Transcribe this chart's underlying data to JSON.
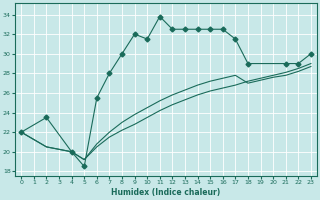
{
  "xlabel": "Humidex (Indice chaleur)",
  "ylabel": "",
  "background_color": "#c8e8e8",
  "grid_color": "#ffffff",
  "line_color": "#1a6b5a",
  "xlim": [
    -0.5,
    23.5
  ],
  "ylim": [
    17.5,
    35.2
  ],
  "xticks": [
    0,
    1,
    2,
    3,
    4,
    5,
    6,
    7,
    8,
    9,
    10,
    11,
    12,
    13,
    14,
    15,
    16,
    17,
    18,
    19,
    20,
    21,
    22,
    23
  ],
  "yticks": [
    18,
    20,
    22,
    24,
    26,
    28,
    30,
    32,
    34
  ],
  "line1_x": [
    0,
    2,
    4,
    5,
    6,
    7,
    8,
    9,
    10,
    11,
    12,
    13,
    14,
    15,
    16,
    17,
    18,
    21,
    22,
    23
  ],
  "line1_y": [
    22,
    23.5,
    20,
    18.5,
    25.5,
    28,
    30,
    32,
    31.5,
    33.8,
    32.5,
    32.5,
    32.5,
    32.5,
    32.5,
    31.5,
    29,
    29,
    29,
    30
  ],
  "line2_x": [
    0,
    2,
    4,
    5,
    6,
    7,
    8,
    9,
    10,
    11,
    12,
    13,
    14,
    15,
    16,
    17,
    18,
    19,
    20,
    21,
    22,
    23
  ],
  "line2_y": [
    22,
    20.5,
    20,
    19.2,
    20.5,
    21.5,
    22.2,
    22.8,
    23.5,
    24.2,
    24.8,
    25.3,
    25.8,
    26.2,
    26.5,
    26.8,
    27.2,
    27.5,
    27.8,
    28.1,
    28.5,
    29.0
  ],
  "line3_x": [
    0,
    2,
    4,
    5,
    6,
    7,
    8,
    9,
    10,
    11,
    12,
    13,
    14,
    15,
    16,
    17,
    18,
    19,
    20,
    21,
    22,
    23
  ],
  "line3_y": [
    22,
    20.5,
    20,
    19.2,
    20.8,
    22.0,
    23.0,
    23.8,
    24.5,
    25.2,
    25.8,
    26.3,
    26.8,
    27.2,
    27.5,
    27.8,
    27.0,
    27.3,
    27.6,
    27.8,
    28.2,
    28.7
  ]
}
